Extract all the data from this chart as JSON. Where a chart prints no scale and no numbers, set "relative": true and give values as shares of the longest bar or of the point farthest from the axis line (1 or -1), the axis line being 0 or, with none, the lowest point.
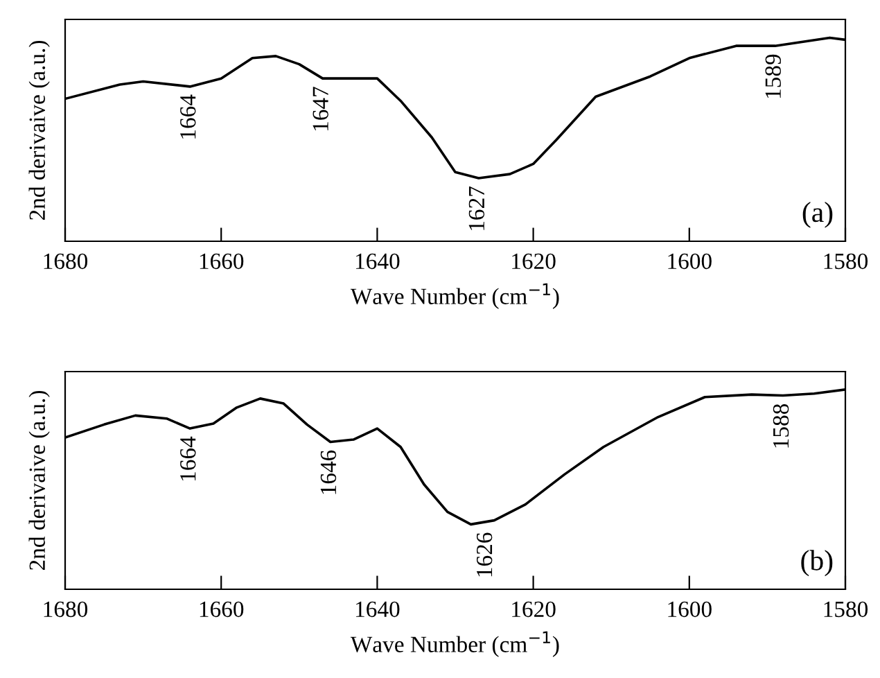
{
  "chart_data": [
    {
      "type": "line",
      "relative": true,
      "xlabel": "Wave Number (cm$^{−1}$)",
      "ylabel": "2nd derivaive (a.u.)",
      "xlim": [
        1680,
        1580
      ],
      "xticks": [
        1680,
        1660,
        1640,
        1620,
        1600,
        1580
      ],
      "tick_labels": "x",
      "grid": false,
      "marker": "none",
      "line_style": "solid",
      "x": [
        1680,
        1673,
        1670,
        1664,
        1660,
        1656,
        1653,
        1650,
        1647,
        1643,
        1640,
        1637,
        1633,
        1630,
        1627,
        1623,
        1620,
        1617,
        1612,
        1605,
        1600,
        1594,
        1589,
        1582,
        1580
      ],
      "series": [
        {
          "color": "#000000",
          "values": [
            0.7,
            0.77,
            0.785,
            0.76,
            0.8,
            0.9,
            0.91,
            0.87,
            0.8,
            0.8,
            0.8,
            0.69,
            0.51,
            0.34,
            0.31,
            0.33,
            0.38,
            0.5,
            0.71,
            0.81,
            0.9,
            0.96,
            0.96,
            1.0,
            0.99
          ]
        }
      ],
      "annotations": [
        {
          "text": "1664",
          "x": 1664,
          "y": 0.76
        },
        {
          "text": "1647",
          "x": 1647,
          "y": 0.8
        },
        {
          "text": "1627",
          "x": 1627,
          "y": 0.31
        },
        {
          "text": "1589",
          "x": 1589,
          "y": 0.96
        },
        "(a)"
      ]
    },
    {
      "type": "line",
      "relative": true,
      "xlabel": "Wave Number (cm$^{−1}$)",
      "ylabel": "2nd derivaive (a.u.)",
      "xlim": [
        1680,
        1580
      ],
      "xticks": [
        1680,
        1660,
        1640,
        1620,
        1600,
        1580
      ],
      "tick_labels": "x",
      "grid": false,
      "marker": "none",
      "line_style": "solid",
      "x": [
        1680,
        1675,
        1671,
        1667,
        1664,
        1661,
        1658,
        1655,
        1652,
        1649,
        1646,
        1643,
        1640,
        1637,
        1634,
        1631,
        1628,
        1625,
        1621,
        1616,
        1611,
        1604,
        1598,
        1592,
        1588,
        1584,
        1580
      ],
      "series": [
        {
          "color": "#000000",
          "values": [
            0.76,
            0.825,
            0.87,
            0.855,
            0.805,
            0.83,
            0.91,
            0.955,
            0.93,
            0.825,
            0.7375,
            0.75,
            0.805,
            0.7125,
            0.525,
            0.3875,
            0.325,
            0.345,
            0.425,
            0.575,
            0.7125,
            0.8625,
            0.9625,
            0.975,
            0.97,
            0.98,
            1.0
          ]
        }
      ],
      "annotations": [
        {
          "text": "1664",
          "x": 1664,
          "y": 0.805
        },
        {
          "text": "1646",
          "x": 1646,
          "y": 0.7375
        },
        {
          "text": "1626",
          "x": 1626,
          "y": 0.325
        },
        {
          "text": "1588",
          "x": 1588,
          "y": 0.97
        },
        "(b)"
      ]
    }
  ]
}
